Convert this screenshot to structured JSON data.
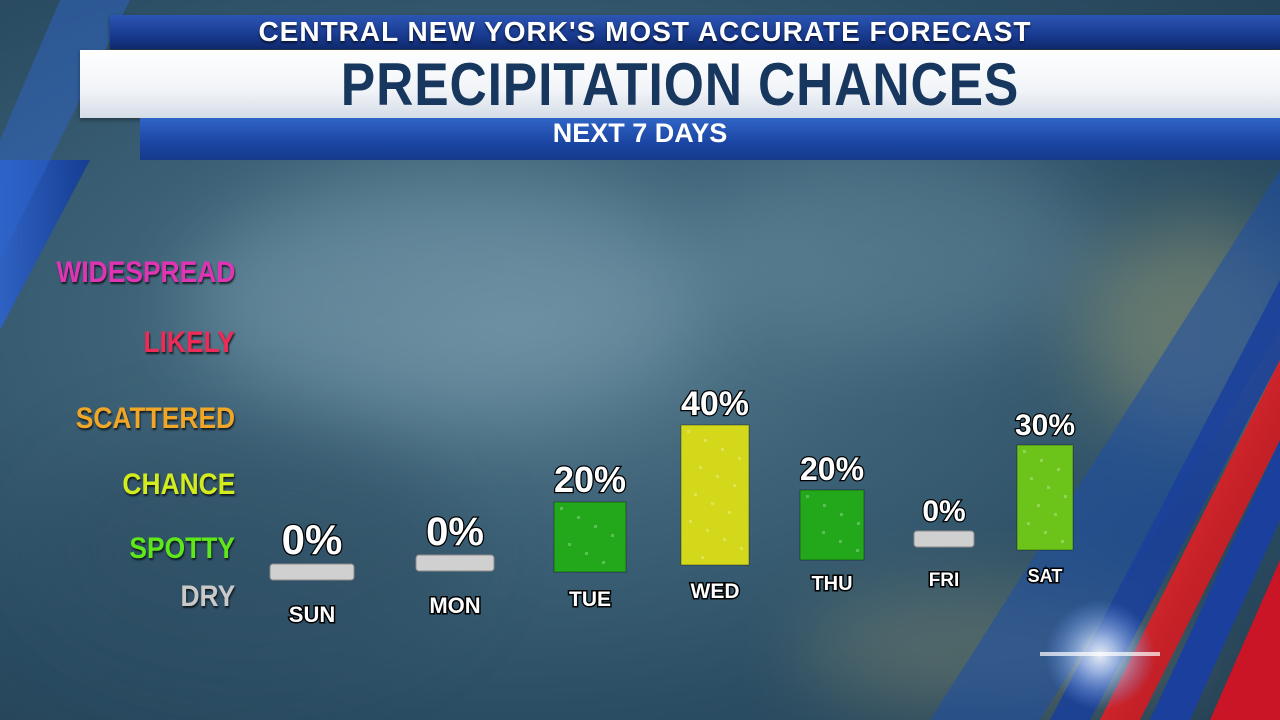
{
  "header": {
    "top_line": "CENTRAL NEW YORK'S MOST ACCURATE FORECAST",
    "title": "PRECIPITATION CHANCES",
    "subtitle": "NEXT 7 DAYS"
  },
  "categories": [
    {
      "label": "WIDESPREAD",
      "color": "#e034b4"
    },
    {
      "label": "LIKELY",
      "color": "#ee2a56"
    },
    {
      "label": "SCATTERED",
      "color": "#f0a626"
    },
    {
      "label": "CHANCE",
      "color": "#d2ec1e"
    },
    {
      "label": "SPOTTY",
      "color": "#5ee81a"
    },
    {
      "label": "DRY",
      "color": "#c9c9c9"
    }
  ],
  "chart_data": {
    "type": "bar",
    "categories": [
      "SUN",
      "MON",
      "TUE",
      "WED",
      "THU",
      "FRI",
      "SAT"
    ],
    "values": [
      0,
      0,
      20,
      40,
      20,
      0,
      30
    ],
    "value_labels": [
      "0%",
      "0%",
      "20%",
      "40%",
      "20%",
      "0%",
      "30%"
    ],
    "colors": [
      "#d0d0d0",
      "#d0d0d0",
      "#22a81a",
      "#d4d81a",
      "#22a81a",
      "#d0d0d0",
      "#6cc41a"
    ],
    "title": "PRECIPITATION CHANCES",
    "subtitle": "NEXT 7 DAYS",
    "ylabel": "",
    "xlabel": "",
    "ylim": [
      0,
      100
    ],
    "grid": false
  }
}
